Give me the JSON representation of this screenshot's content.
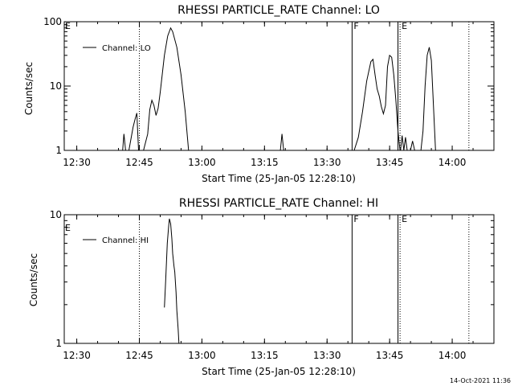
{
  "chart_data": [
    {
      "type": "line",
      "title": "RHESSI PARTICLE_RATE Channel: LO",
      "xlabel": "Start Time (25-Jan-05 12:28:10)",
      "ylabel": "Counts/sec",
      "yscale": "log",
      "xlim": [
        "12:27",
        "14:10"
      ],
      "ylim": [
        1,
        100
      ],
      "x_ticks": [
        "12:30",
        "12:45",
        "13:00",
        "13:15",
        "13:30",
        "13:45",
        "14:00"
      ],
      "y_ticks": [
        "1",
        "10",
        "100"
      ],
      "legend": {
        "entries": [
          "Channel: LO"
        ],
        "position": "top-left"
      },
      "markers": [
        {
          "time": "12:45",
          "style": "dotted",
          "label": ""
        },
        {
          "time": "13:36",
          "style": "solid",
          "label": "F"
        },
        {
          "time": "13:47",
          "style": "solid",
          "label": ""
        },
        {
          "time": "13:47.5",
          "style": "dotted",
          "label": "E"
        },
        {
          "time": "14:04",
          "style": "dotted",
          "label": ""
        }
      ],
      "corner_label": "E",
      "series": [
        {
          "name": "Channel: LO",
          "segments": [
            [
              [
                "12:41",
                1
              ],
              [
                "12:41.3",
                1.8
              ],
              [
                "12:41.7",
                1
              ]
            ],
            [
              [
                "12:42.5",
                1
              ],
              [
                "12:43.5",
                2.3
              ],
              [
                "12:44",
                3.1
              ],
              [
                "12:44.4",
                3.8
              ],
              [
                "12:44.8",
                1
              ]
            ],
            [
              [
                "12:46",
                1
              ],
              [
                "12:47",
                1.8
              ],
              [
                "12:47.5",
                4.3
              ],
              [
                "12:48",
                6
              ],
              [
                "12:48.5",
                5
              ],
              [
                "12:49",
                3.5
              ],
              [
                "12:49.5",
                4.5
              ],
              [
                "12:50",
                8
              ],
              [
                "12:51",
                30
              ],
              [
                "12:51.8",
                60
              ],
              [
                "12:52.5",
                80
              ],
              [
                "12:53",
                70
              ],
              [
                "12:54",
                40
              ],
              [
                "12:55",
                15
              ],
              [
                "12:56",
                4
              ],
              [
                "12:56.8",
                1
              ]
            ],
            [
              [
                "13:18.8",
                1
              ],
              [
                "13:19.2",
                1.8
              ],
              [
                "13:19.6",
                1
              ]
            ],
            [
              [
                "13:36.5",
                1
              ],
              [
                "13:37.5",
                1.6
              ],
              [
                "13:38.5",
                4
              ],
              [
                "13:39.5",
                12
              ],
              [
                "13:40.5",
                24
              ],
              [
                "13:41",
                26
              ],
              [
                "13:41.5",
                15
              ],
              [
                "13:42",
                9
              ],
              [
                "13:42.5",
                7
              ],
              [
                "13:43",
                4.8
              ],
              [
                "13:43.5",
                3.7
              ],
              [
                "13:44",
                5
              ],
              [
                "13:44.5",
                20
              ],
              [
                "13:45",
                30
              ],
              [
                "13:45.5",
                28
              ],
              [
                "13:46",
                15
              ],
              [
                "13:46.5",
                6
              ],
              [
                "13:47",
                2
              ],
              [
                "13:47.5",
                1
              ]
            ],
            [
              [
                "13:47.6",
                1
              ],
              [
                "13:48",
                1.7
              ],
              [
                "13:48.4",
                1
              ],
              [
                "13:48.8",
                1.6
              ],
              [
                "13:49.2",
                1
              ]
            ],
            [
              [
                "13:50",
                1
              ],
              [
                "13:50.5",
                1.4
              ],
              [
                "13:51",
                1
              ]
            ],
            [
              [
                "13:52.5",
                1
              ],
              [
                "13:53",
                2
              ],
              [
                "13:53.5",
                10
              ],
              [
                "13:54",
                30
              ],
              [
                "13:54.5",
                40
              ],
              [
                "13:55",
                25
              ],
              [
                "13:55.5",
                5
              ],
              [
                "13:56",
                1
              ]
            ]
          ]
        }
      ]
    },
    {
      "type": "line",
      "title": "RHESSI PARTICLE_RATE Channel: HI",
      "xlabel": "Start Time (25-Jan-05 12:28:10)",
      "ylabel": "Counts/sec",
      "yscale": "log",
      "xlim": [
        "12:27",
        "14:10"
      ],
      "ylim": [
        1,
        10
      ],
      "x_ticks": [
        "12:30",
        "12:45",
        "13:00",
        "13:15",
        "13:30",
        "13:45",
        "14:00"
      ],
      "y_ticks": [
        "1",
        "10"
      ],
      "legend": {
        "entries": [
          "Channel: HI"
        ],
        "position": "top-left"
      },
      "markers": [
        {
          "time": "12:45",
          "style": "dotted",
          "label": ""
        },
        {
          "time": "13:36",
          "style": "solid",
          "label": "F"
        },
        {
          "time": "13:47",
          "style": "solid",
          "label": ""
        },
        {
          "time": "13:47.5",
          "style": "dotted",
          "label": "E"
        },
        {
          "time": "14:04",
          "style": "dotted",
          "label": ""
        }
      ],
      "corner_label": "E",
      "series": [
        {
          "name": "Channel: HI",
          "segments": [
            [
              [
                "12:51",
                1.9
              ],
              [
                "12:51.3",
                3
              ],
              [
                "12:51.7",
                6
              ],
              [
                "12:52",
                8
              ],
              [
                "12:52.2",
                9.3
              ],
              [
                "12:52.5",
                8.5
              ],
              [
                "12:52.8",
                6.5
              ],
              [
                "12:53",
                5
              ],
              [
                "12:53.3",
                4
              ],
              [
                "12:53.5",
                3.6
              ],
              [
                "12:53.8",
                2.5
              ],
              [
                "12:54",
                1.8
              ],
              [
                "12:54.3",
                1.3
              ],
              [
                "12:54.5",
                1
              ]
            ]
          ]
        }
      ]
    }
  ],
  "footer": {
    "timestamp": "14-Oct-2021 11:36"
  }
}
